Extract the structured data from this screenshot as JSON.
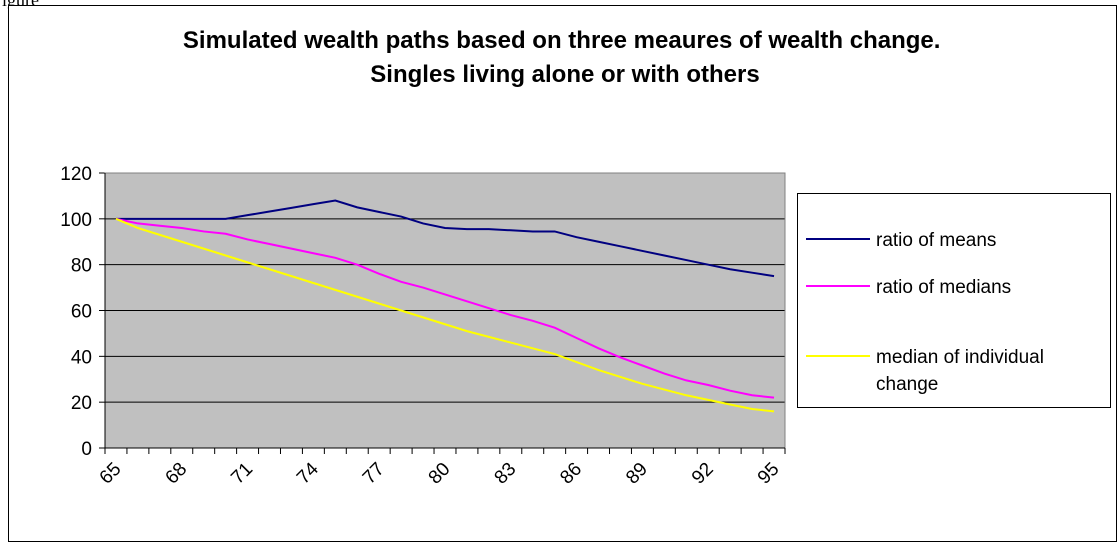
{
  "caption": "igure",
  "chart_data": {
    "type": "line",
    "title": "Simulated wealth paths based on three meaures of wealth change.  Singles living alone or with others",
    "categories": [
      "65",
      null,
      null,
      "68",
      null,
      null,
      "71",
      null,
      null,
      "74",
      null,
      null,
      "77",
      null,
      null,
      "80",
      null,
      null,
      "83",
      null,
      null,
      "86",
      null,
      null,
      "89",
      null,
      null,
      "92",
      null,
      null,
      "95"
    ],
    "ylim": [
      0,
      120
    ],
    "yticks": [
      0,
      20,
      40,
      60,
      80,
      100,
      120
    ],
    "grid": true,
    "series": [
      {
        "name": "ratio of means",
        "color": "#000080",
        "values": [
          100,
          100,
          100,
          100,
          100,
          100,
          101.6,
          103.2,
          104.8,
          106.4,
          108,
          105,
          103,
          101,
          98,
          96,
          95.5,
          95.5,
          95,
          94.5,
          94.5,
          92,
          90,
          88,
          86,
          84,
          82,
          80,
          78,
          76.5,
          75
        ]
      },
      {
        "name": "ratio of medians",
        "color": "#ff00ff",
        "values": [
          100,
          98,
          97,
          96,
          94.5,
          93.5,
          91,
          89,
          87,
          85,
          83,
          80,
          76,
          72.5,
          70,
          67,
          64,
          61,
          58,
          55.5,
          52.5,
          48,
          43.5,
          39.5,
          36,
          32.5,
          29.5,
          27.5,
          25,
          23,
          22
        ]
      },
      {
        "name": "median of individual change",
        "color": "#ffff00",
        "values": [
          100,
          96,
          93,
          90,
          87,
          84,
          81,
          78,
          75,
          72,
          69,
          66,
          63,
          60,
          57,
          54,
          51,
          48.5,
          46,
          43.5,
          41,
          37.5,
          34,
          31,
          28,
          25.5,
          23,
          21,
          19,
          17,
          16
        ]
      }
    ]
  }
}
